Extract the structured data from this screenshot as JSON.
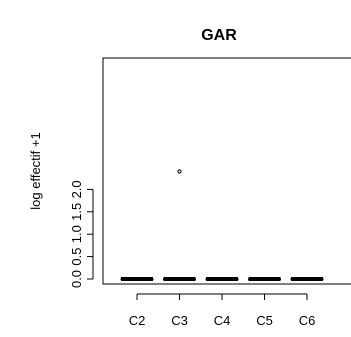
{
  "chart_data": {
    "type": "box",
    "title": "GAR",
    "xlabel": "",
    "ylabel": "log effectif +1",
    "categories": [
      "C2",
      "C3",
      "C4",
      "C5",
      "C6"
    ],
    "ylim": [
      0,
      2.4
    ],
    "yticks": [
      0.0,
      0.5,
      1.0,
      1.5,
      2.0
    ],
    "ytick_labels": [
      "0.0",
      "0.5",
      "1.0",
      "1.5",
      "2.0"
    ],
    "boxes": [
      {
        "category": "C2",
        "min": 0,
        "q1": 0,
        "median": 0,
        "q3": 0,
        "max": 0
      },
      {
        "category": "C3",
        "min": 0,
        "q1": 0,
        "median": 0,
        "q3": 0,
        "max": 0
      },
      {
        "category": "C4",
        "min": 0,
        "q1": 0,
        "median": 0,
        "q3": 0,
        "max": 0
      },
      {
        "category": "C5",
        "min": 0,
        "q1": 0,
        "median": 0,
        "q3": 0,
        "max": 0
      },
      {
        "category": "C6",
        "min": 0,
        "q1": 0,
        "median": 0,
        "q3": 0,
        "max": 0
      }
    ],
    "outliers": [
      {
        "category": "C3",
        "value": 2.4
      }
    ],
    "grid": false,
    "legend": "none"
  }
}
